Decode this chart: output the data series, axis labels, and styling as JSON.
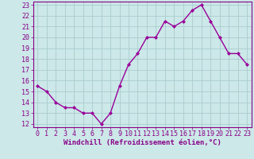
{
  "hours": [
    0,
    1,
    2,
    3,
    4,
    5,
    6,
    7,
    8,
    9,
    10,
    11,
    12,
    13,
    14,
    15,
    16,
    17,
    18,
    19,
    20,
    21,
    22,
    23
  ],
  "values": [
    15.5,
    15.0,
    14.0,
    13.5,
    13.5,
    13.0,
    13.0,
    12.0,
    13.0,
    15.5,
    17.5,
    18.5,
    20.0,
    20.0,
    21.5,
    21.0,
    21.5,
    22.5,
    23.0,
    21.5,
    20.0,
    18.5,
    18.5,
    17.5
  ],
  "line_color": "#990099",
  "marker": "D",
  "marker_size": 2.0,
  "bg_color": "#cce8e8",
  "grid_color": "#aaccd0",
  "xlabel": "Windchill (Refroidissement éolien,°C)",
  "ylim": [
    12,
    23
  ],
  "xlim": [
    -0.5,
    23.5
  ],
  "yticks": [
    12,
    13,
    14,
    15,
    16,
    17,
    18,
    19,
    20,
    21,
    22,
    23
  ],
  "xticks": [
    0,
    1,
    2,
    3,
    4,
    5,
    6,
    7,
    8,
    9,
    10,
    11,
    12,
    13,
    14,
    15,
    16,
    17,
    18,
    19,
    20,
    21,
    22,
    23
  ],
  "xlabel_fontsize": 6.5,
  "tick_fontsize": 6.0,
  "text_color": "#880088",
  "spine_color": "#880088",
  "linewidth": 1.0
}
